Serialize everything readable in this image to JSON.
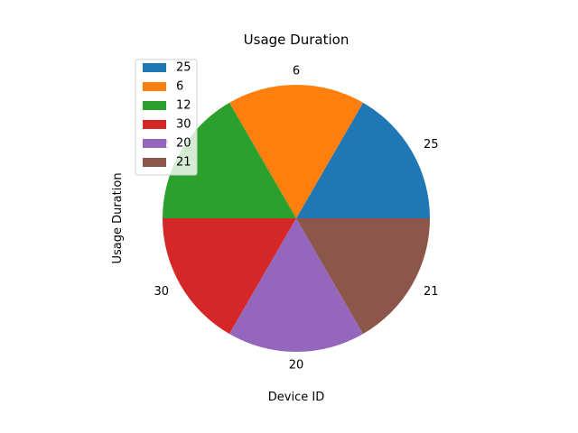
{
  "chart_data": {
    "type": "pie",
    "title": "Usage Duration",
    "xlabel": "Device ID",
    "ylabel": "Usage Duration",
    "start_angle": 0,
    "direction": "counterclockwise",
    "legend_location": "upper-left",
    "slices": [
      {
        "label": "25",
        "value": 1,
        "color": "#1f77b4"
      },
      {
        "label": "6",
        "value": 1,
        "color": "#ff7f0e"
      },
      {
        "label": "12",
        "value": 1,
        "color": "#2ca02c"
      },
      {
        "label": "30",
        "value": 1,
        "color": "#d62728"
      },
      {
        "label": "20",
        "value": 1,
        "color": "#9467bd"
      },
      {
        "label": "21",
        "value": 1,
        "color": "#8c564b"
      }
    ]
  }
}
